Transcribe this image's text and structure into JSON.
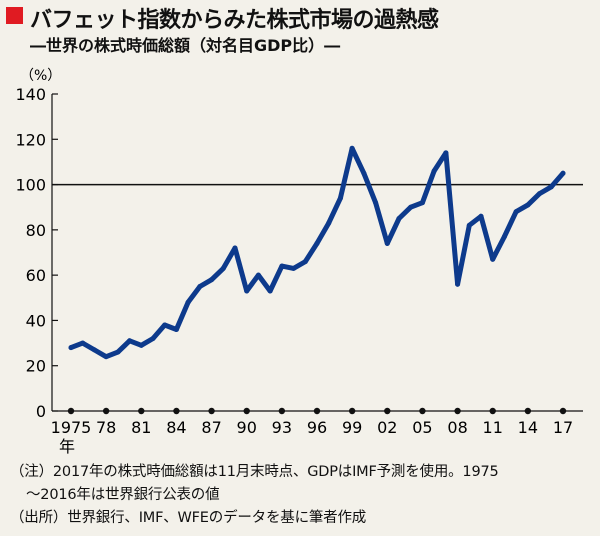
{
  "header": {
    "title": "バフェット指数からみた株式市場の過熱感",
    "subtitle": "―世界の株式時価総額（対名目GDP比）―"
  },
  "footer": {
    "note_line1": "（注）2017年の株式時価総額は11月末時点、GDPはIMF予測を使用。1975",
    "note_line2": "〜2016年は世界銀行公表の値",
    "source": "（出所）世界銀行、IMF、WFEのデータを基に筆者作成"
  },
  "colors": {
    "line": "#0d3a8c",
    "accent": "#e01b22",
    "background": "#f3f1ea"
  },
  "chart_data": {
    "type": "line",
    "ylabel": "（%）",
    "ylim": [
      0,
      140
    ],
    "yticks": [
      0,
      20,
      40,
      60,
      80,
      100,
      120,
      140
    ],
    "reference_line": 100,
    "xlim": [
      1975,
      2017
    ],
    "xticks": [
      {
        "year": 1975,
        "label": "1975",
        "sublabel": "年"
      },
      {
        "year": 1978,
        "label": "78"
      },
      {
        "year": 1981,
        "label": "81"
      },
      {
        "year": 1984,
        "label": "84"
      },
      {
        "year": 1987,
        "label": "87"
      },
      {
        "year": 1990,
        "label": "90"
      },
      {
        "year": 1993,
        "label": "93"
      },
      {
        "year": 1996,
        "label": "96"
      },
      {
        "year": 1999,
        "label": "99"
      },
      {
        "year": 2002,
        "label": "02"
      },
      {
        "year": 2005,
        "label": "05"
      },
      {
        "year": 2008,
        "label": "08"
      },
      {
        "year": 2011,
        "label": "11"
      },
      {
        "year": 2014,
        "label": "14"
      },
      {
        "year": 2017,
        "label": "17"
      }
    ],
    "x": [
      1975,
      1976,
      1977,
      1978,
      1979,
      1980,
      1981,
      1982,
      1983,
      1984,
      1985,
      1986,
      1987,
      1988,
      1989,
      1990,
      1991,
      1992,
      1993,
      1994,
      1995,
      1996,
      1997,
      1998,
      1999,
      2000,
      2001,
      2002,
      2003,
      2004,
      2005,
      2006,
      2007,
      2008,
      2009,
      2010,
      2011,
      2012,
      2013,
      2014,
      2015,
      2016,
      2017
    ],
    "values": [
      28,
      30,
      27,
      24,
      26,
      31,
      29,
      32,
      38,
      36,
      48,
      55,
      58,
      63,
      72,
      53,
      60,
      53,
      64,
      63,
      66,
      74,
      83,
      94,
      116,
      105,
      92,
      74,
      85,
      90,
      92,
      106,
      114,
      56,
      82,
      86,
      67,
      77,
      88,
      91,
      96,
      99,
      105
    ]
  }
}
